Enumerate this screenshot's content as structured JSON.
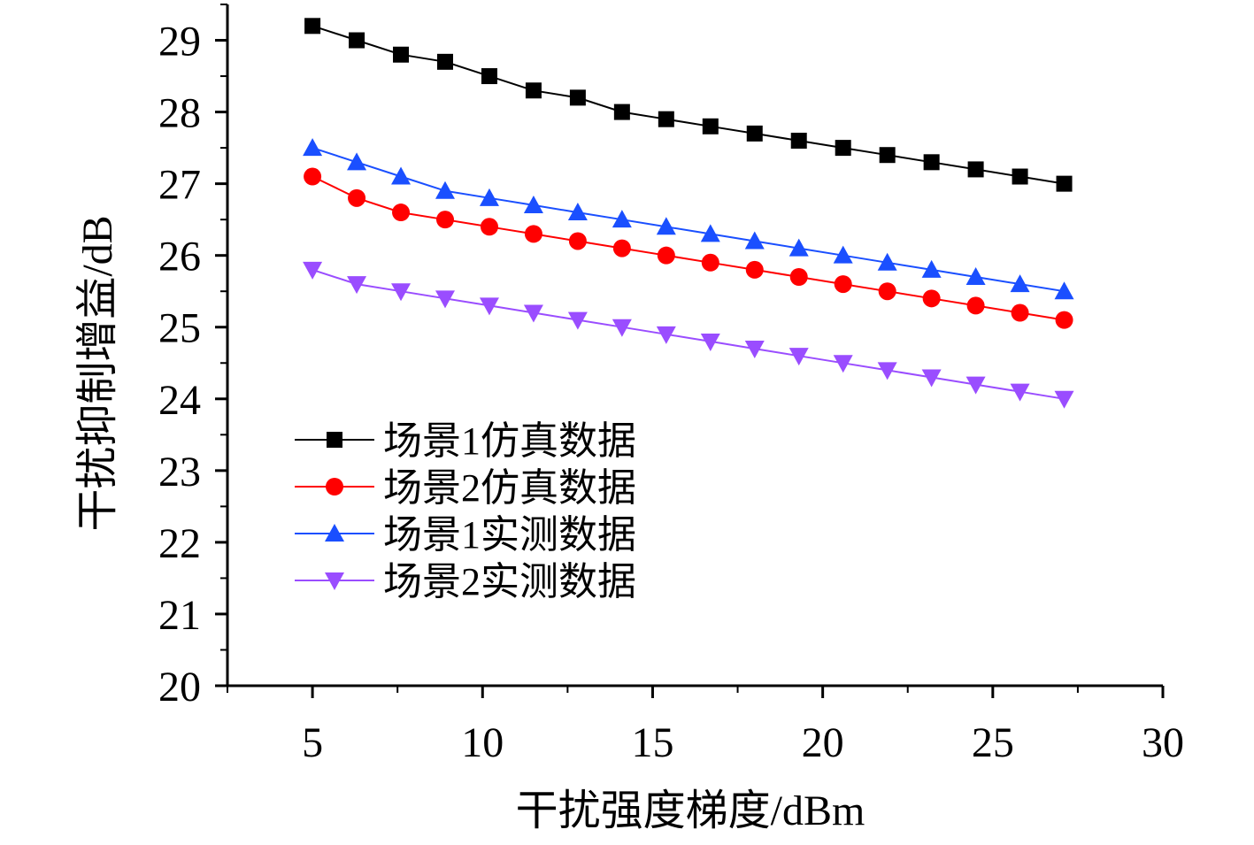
{
  "chart_data": {
    "type": "line",
    "title": "",
    "xlabel": "干扰强度梯度/dBm",
    "ylabel": "干扰抑制增益/dB",
    "xlim": [
      2.5,
      30
    ],
    "ylim": [
      20,
      29.5
    ],
    "xticks": [
      5,
      10,
      15,
      20,
      25,
      30
    ],
    "yticks": [
      20,
      21,
      22,
      23,
      24,
      25,
      26,
      27,
      28,
      29
    ],
    "x": [
      5.0,
      6.3,
      7.6,
      8.9,
      10.2,
      11.5,
      12.8,
      14.1,
      15.4,
      16.7,
      18.0,
      19.3,
      20.6,
      21.9,
      23.2,
      24.5,
      25.8,
      27.1
    ],
    "grid": false,
    "legend_position": "center-left",
    "series": [
      {
        "name": "场景1仿真数据",
        "color": "#000000",
        "marker": "square",
        "values": [
          29.2,
          29.0,
          28.8,
          28.7,
          28.5,
          28.3,
          28.2,
          28.0,
          27.9,
          27.8,
          27.7,
          27.6,
          27.5,
          27.4,
          27.3,
          27.2,
          27.1,
          27.0
        ]
      },
      {
        "name": "场景2仿真数据",
        "color": "#ff0000",
        "marker": "circle",
        "values": [
          27.1,
          26.8,
          26.6,
          26.5,
          26.4,
          26.3,
          26.2,
          26.1,
          26.0,
          25.9,
          25.8,
          25.7,
          25.6,
          25.5,
          25.4,
          25.3,
          25.2,
          25.1
        ]
      },
      {
        "name": "场景1实测数据",
        "color": "#1a4fff",
        "marker": "triangle-up",
        "values": [
          27.5,
          27.3,
          27.1,
          26.9,
          26.8,
          26.7,
          26.6,
          26.5,
          26.4,
          26.3,
          26.2,
          26.1,
          26.0,
          25.9,
          25.8,
          25.7,
          25.6,
          25.5
        ]
      },
      {
        "name": "场景2实测数据",
        "color": "#9a4dff",
        "marker": "triangle-down",
        "values": [
          25.8,
          25.6,
          25.5,
          25.4,
          25.3,
          25.2,
          25.1,
          25.0,
          24.9,
          24.8,
          24.7,
          24.6,
          24.5,
          24.4,
          24.3,
          24.2,
          24.1,
          24.0
        ]
      }
    ]
  }
}
